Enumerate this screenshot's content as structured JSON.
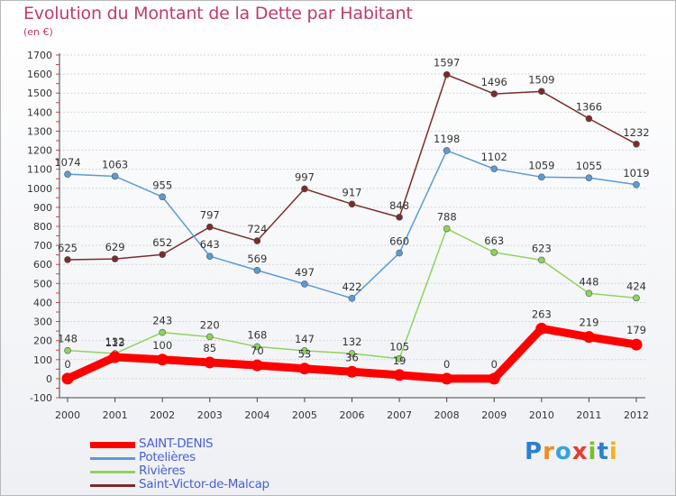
{
  "title": "Evolution du Montant de la Dette par Habitant",
  "subtitle": "(en €)",
  "logo": {
    "text": "Proxiti",
    "colors": [
      "#2b7fd0",
      "#f08a1c",
      "#3aa0e0",
      "#e63b2e",
      "#7bbf2a",
      "#2b7fd0",
      "#f0b41c"
    ]
  },
  "chart_data": {
    "type": "line",
    "title": "Evolution du Montant de la Dette par Habitant",
    "ylabel": "(en €)",
    "xlabel": "",
    "x": [
      "2000",
      "2001",
      "2002",
      "2003",
      "2004",
      "2005",
      "2006",
      "2007",
      "2008",
      "2009",
      "2010",
      "2011",
      "2012"
    ],
    "ylim": [
      -100,
      1700
    ],
    "yticks": [
      "-100",
      "0",
      "100",
      "200",
      "300",
      "400",
      "500",
      "600",
      "700",
      "800",
      "900",
      "1000",
      "1100",
      "1200",
      "1300",
      "1400",
      "1500",
      "1600",
      "1700"
    ],
    "grid": "horizontal",
    "legend_position": "bottom-left",
    "series": [
      {
        "name": "SAINT-DENIS",
        "color": "#ff0000",
        "values": [
          0,
          113,
          100,
          85,
          70,
          53,
          36,
          19,
          0,
          0,
          263,
          219,
          179
        ],
        "labels": [
          "0",
          "113",
          "100",
          "85",
          "70",
          "53",
          "36",
          "19",
          "0",
          "0",
          "263",
          "219",
          "179"
        ]
      },
      {
        "name": "Potelières",
        "color": "#5b9bd5",
        "values": [
          1074,
          1063,
          955,
          643,
          569,
          497,
          422,
          660,
          1198,
          1102,
          1059,
          1055,
          1019
        ],
        "labels": [
          "1074",
          "1063",
          "955",
          "643",
          "569",
          "497",
          "422",
          "660",
          "1198",
          "1102",
          "1059",
          "1055",
          "1019"
        ]
      },
      {
        "name": "Rivières",
        "color": "#8fd35f",
        "values": [
          148,
          132,
          243,
          220,
          168,
          147,
          132,
          105,
          788,
          663,
          623,
          448,
          424
        ],
        "labels": [
          "148",
          "132",
          "243",
          "220",
          "168",
          "147",
          "132",
          "105",
          "788",
          "663",
          "623",
          "448",
          "424"
        ]
      },
      {
        "name": "Saint-Victor-de-Malcap",
        "color": "#7a2c2c",
        "values": [
          625,
          629,
          652,
          797,
          724,
          997,
          917,
          848,
          1597,
          1496,
          1509,
          1366,
          1232
        ],
        "labels": [
          "625",
          "629",
          "652",
          "797",
          "724",
          "997",
          "917",
          "848",
          "1597",
          "1496",
          "1509",
          "1366",
          "1232"
        ]
      }
    ]
  }
}
